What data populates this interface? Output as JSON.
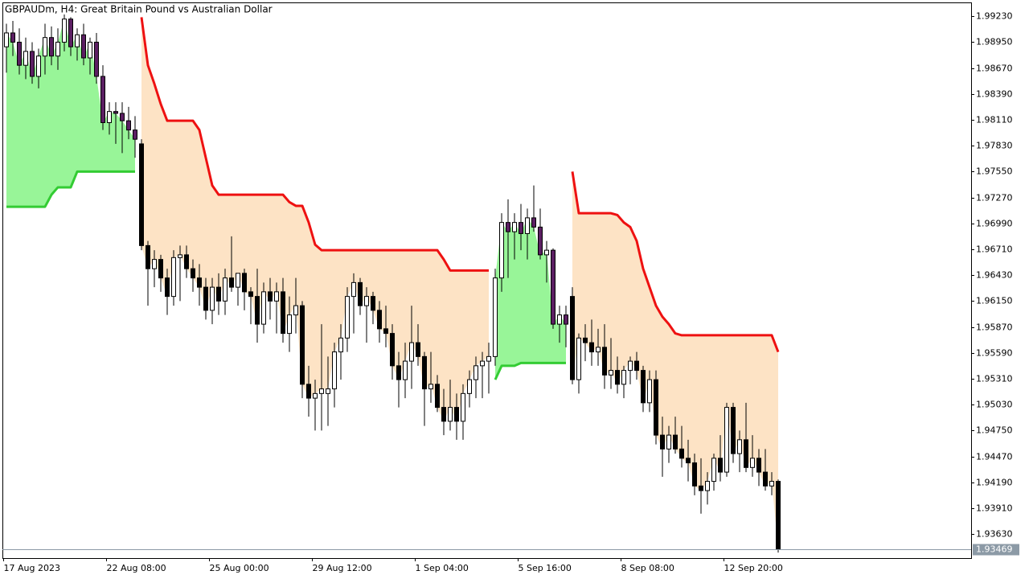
{
  "chart_data": {
    "type": "candlestick",
    "title": "GBPAUDm, H4:  Great Britain Pound vs Australian Dollar",
    "open": [
      1.989,
      1.9905,
      1.9895,
      1.987,
      1.9885,
      1.9858,
      1.988,
      1.99,
      1.988,
      1.9895,
      1.992,
      1.989,
      1.9903,
      1.9878,
      1.9895,
      1.9858,
      1.9808,
      1.982,
      1.9818,
      1.981,
      1.98,
      1.9785,
      1.9675,
      1.965,
      1.966,
      1.964,
      1.962,
      1.9662,
      1.9665,
      1.965,
      1.964,
      1.963,
      1.9605,
      1.963,
      1.9615,
      1.964,
      1.963,
      1.9645,
      1.9625,
      1.962,
      1.959,
      1.9625,
      1.9615,
      1.9625,
      1.958,
      1.96,
      1.961,
      1.9525,
      1.951,
      1.9515,
      1.9515,
      1.952,
      1.956,
      1.9575,
      1.962,
      1.9635,
      1.961,
      1.962,
      1.9605,
      1.9585,
      1.958,
      1.9545,
      1.953,
      1.955,
      1.957,
      1.9555,
      1.952,
      1.9525,
      1.95,
      1.9485,
      1.95,
      1.9485,
      1.9515,
      1.953,
      1.9545,
      1.955,
      1.9555,
      1.964,
      1.97,
      1.969,
      1.97,
      1.9688,
      1.9705,
      1.9695,
      1.9665,
      1.967,
      1.959,
      1.96,
      1.962,
      1.953,
      1.9575,
      1.957,
      1.956,
      1.9565,
      1.9535,
      1.954,
      1.9525,
      1.954,
      1.955,
      1.954,
      1.9505,
      1.953,
      1.947,
      1.9455,
      1.947,
      1.9455,
      1.9445,
      1.944,
      1.9415,
      1.941,
      1.942,
      1.9445,
      1.943,
      1.95,
      1.945,
      1.9465,
      1.9435,
      1.9445,
      1.943,
      1.9415,
      1.942
    ],
    "high": [
      1.9915,
      1.9918,
      1.991,
      1.99,
      1.9895,
      1.9888,
      1.9915,
      1.9912,
      1.991,
      1.9925,
      1.9922,
      1.991,
      1.9915,
      1.99,
      1.9905,
      1.987,
      1.983,
      1.983,
      1.983,
      1.9825,
      1.9815,
      1.979,
      1.968,
      1.967,
      1.9665,
      1.965,
      1.967,
      1.9675,
      1.9675,
      1.966,
      1.9655,
      1.964,
      1.964,
      1.9645,
      1.965,
      1.9685,
      1.9645,
      1.965,
      1.963,
      1.965,
      1.9635,
      1.964,
      1.9635,
      1.964,
      1.962,
      1.964,
      1.9615,
      1.9545,
      1.953,
      1.959,
      1.9555,
      1.957,
      1.959,
      1.963,
      1.9645,
      1.964,
      1.963,
      1.9625,
      1.9615,
      1.961,
      1.959,
      1.956,
      1.957,
      1.961,
      1.959,
      1.956,
      1.956,
      1.9535,
      1.952,
      1.953,
      1.9515,
      1.9525,
      1.954,
      1.9555,
      1.956,
      1.957,
      1.965,
      1.971,
      1.9725,
      1.971,
      1.972,
      1.9715,
      1.974,
      1.9715,
      1.968,
      1.9672,
      1.961,
      1.961,
      1.963,
      1.958,
      1.959,
      1.9595,
      1.9585,
      1.959,
      1.9575,
      1.9555,
      1.9545,
      1.9555,
      1.956,
      1.9545,
      1.954,
      1.954,
      1.949,
      1.948,
      1.949,
      1.948,
      1.9465,
      1.945,
      1.9445,
      1.943,
      1.945,
      1.947,
      1.9505,
      1.9505,
      1.9475,
      1.9505,
      1.947,
      1.9455,
      1.9455,
      1.943,
      1.9422
    ],
    "low": [
      1.9862,
      1.988,
      1.986,
      1.9855,
      1.985,
      1.9845,
      1.986,
      1.987,
      1.9865,
      1.9885,
      1.988,
      1.9875,
      1.987,
      1.986,
      1.985,
      1.98,
      1.9795,
      1.9785,
      1.9775,
      1.979,
      1.977,
      1.967,
      1.961,
      1.963,
      1.9625,
      1.96,
      1.961,
      1.9615,
      1.964,
      1.9625,
      1.961,
      1.9595,
      1.959,
      1.96,
      1.96,
      1.9625,
      1.961,
      1.9605,
      1.959,
      1.957,
      1.958,
      1.9595,
      1.958,
      1.957,
      1.956,
      1.958,
      1.951,
      1.949,
      1.9475,
      1.9475,
      1.948,
      1.95,
      1.953,
      1.956,
      1.958,
      1.96,
      1.957,
      1.959,
      1.957,
      1.9565,
      1.953,
      1.95,
      1.951,
      1.952,
      1.9545,
      1.948,
      1.9505,
      1.9495,
      1.947,
      1.9475,
      1.9465,
      1.9465,
      1.95,
      1.951,
      1.951,
      1.9515,
      1.9545,
      1.9625,
      1.964,
      1.966,
      1.967,
      1.966,
      1.969,
      1.966,
      1.9635,
      1.9585,
      1.957,
      1.9565,
      1.9525,
      1.9515,
      1.955,
      1.9545,
      1.9545,
      1.952,
      1.952,
      1.9515,
      1.951,
      1.9525,
      1.953,
      1.9495,
      1.9495,
      1.946,
      1.9425,
      1.944,
      1.945,
      1.9435,
      1.942,
      1.9405,
      1.9385,
      1.9395,
      1.941,
      1.942,
      1.9425,
      1.944,
      1.943,
      1.943,
      1.9425,
      1.9415,
      1.941,
      1.9405,
      1.9343
    ],
    "close": [
      1.9905,
      1.9895,
      1.987,
      1.9885,
      1.9858,
      1.988,
      1.99,
      1.988,
      1.9895,
      1.992,
      1.989,
      1.9903,
      1.9878,
      1.9895,
      1.9858,
      1.9808,
      1.982,
      1.9818,
      1.981,
      1.98,
      1.979,
      1.9675,
      1.965,
      1.966,
      1.964,
      1.962,
      1.9662,
      1.9665,
      1.965,
      1.964,
      1.963,
      1.9605,
      1.963,
      1.9615,
      1.964,
      1.963,
      1.9645,
      1.9625,
      1.962,
      1.959,
      1.9625,
      1.9615,
      1.9625,
      1.958,
      1.96,
      1.961,
      1.9525,
      1.951,
      1.9515,
      1.952,
      1.952,
      1.956,
      1.9575,
      1.962,
      1.9635,
      1.961,
      1.962,
      1.9605,
      1.9585,
      1.958,
      1.9545,
      1.953,
      1.955,
      1.957,
      1.9555,
      1.952,
      1.9525,
      1.95,
      1.9485,
      1.95,
      1.9485,
      1.9515,
      1.953,
      1.9545,
      1.955,
      1.9555,
      1.964,
      1.97,
      1.969,
      1.97,
      1.9688,
      1.9705,
      1.9695,
      1.9665,
      1.967,
      1.959,
      1.96,
      1.959,
      1.953,
      1.9575,
      1.957,
      1.956,
      1.9565,
      1.9535,
      1.954,
      1.9525,
      1.954,
      1.955,
      1.954,
      1.9505,
      1.953,
      1.947,
      1.9455,
      1.947,
      1.9455,
      1.9445,
      1.944,
      1.9415,
      1.941,
      1.942,
      1.9445,
      1.943,
      1.95,
      1.945,
      1.9465,
      1.9435,
      1.9445,
      1.943,
      1.9415,
      1.942,
      1.93469
    ],
    "supertrend_up": [
      1.9717,
      1.9717,
      1.9717,
      1.9717,
      1.9717,
      1.9717,
      1.9717,
      1.973,
      1.9738,
      1.9738,
      1.9738,
      1.9755,
      1.9755,
      1.9755,
      1.9755,
      1.9755,
      1.9755,
      1.9755,
      1.9755,
      1.9755,
      1.9755,
      null,
      null,
      null,
      null,
      null,
      null,
      null,
      null,
      null,
      null,
      null,
      null,
      null,
      null,
      null,
      null,
      null,
      null,
      null,
      null,
      null,
      null,
      null,
      null,
      null,
      null,
      null,
      null,
      null,
      null,
      null,
      null,
      null,
      null,
      null,
      null,
      null,
      null,
      null,
      null,
      null,
      null,
      null,
      null,
      null,
      null,
      null,
      null,
      null,
      null,
      null,
      null,
      null,
      null,
      null,
      1.953,
      1.9545,
      1.9545,
      1.9545,
      1.9548,
      1.9548,
      1.9548,
      1.9548,
      1.9548,
      1.9548,
      1.9548,
      1.9548,
      null,
      null,
      null,
      null,
      null,
      null,
      null,
      null,
      null,
      null,
      null,
      null,
      null,
      null,
      null,
      null,
      null,
      null,
      null,
      null,
      null,
      null,
      null,
      null,
      null,
      null,
      null,
      null,
      null,
      null,
      null,
      null,
      null
    ],
    "supertrend_down": [
      null,
      null,
      null,
      null,
      null,
      null,
      null,
      null,
      null,
      null,
      null,
      null,
      null,
      null,
      null,
      null,
      null,
      null,
      null,
      null,
      null,
      1.9922,
      1.987,
      1.985,
      1.9828,
      1.981,
      1.981,
      1.981,
      1.981,
      1.981,
      1.98,
      1.977,
      1.974,
      1.973,
      1.973,
      1.973,
      1.973,
      1.973,
      1.973,
      1.973,
      1.973,
      1.973,
      1.973,
      1.973,
      1.9722,
      1.9718,
      1.9718,
      1.97,
      1.9676,
      1.967,
      1.967,
      1.967,
      1.967,
      1.967,
      1.967,
      1.967,
      1.967,
      1.967,
      1.967,
      1.967,
      1.967,
      1.967,
      1.967,
      1.967,
      1.967,
      1.967,
      1.967,
      1.967,
      1.966,
      1.9648,
      1.9648,
      1.9648,
      1.9648,
      1.9648,
      1.9648,
      1.9648,
      null,
      null,
      null,
      null,
      null,
      null,
      null,
      null,
      null,
      null,
      null,
      null,
      1.9755,
      1.971,
      1.971,
      1.971,
      1.971,
      1.971,
      1.971,
      1.9708,
      1.97,
      1.9695,
      1.968,
      1.965,
      1.963,
      1.961,
      1.9598,
      1.959,
      1.958,
      1.9578,
      1.9578,
      1.9578,
      1.9578,
      1.9578,
      1.9578,
      1.9578,
      1.9578,
      1.9578,
      1.9578,
      1.9578,
      1.9578,
      1.9578,
      1.9578,
      1.9578,
      1.956
    ],
    "up_color": "#33cc33",
    "down_color": "#ee1111",
    "up_fill": "#98f598",
    "down_fill": "#fde3c5",
    "bull_color": "#ffffff",
    "bear_color": "#000000",
    "bear_color_in_uptrend": "#5c1f63",
    "ylim": [
      1.9337,
      1.9938
    ],
    "yticks": [
      {
        "value": 1.9923,
        "label": "1.99230"
      },
      {
        "value": 1.9895,
        "label": "1.98950"
      },
      {
        "value": 1.9867,
        "label": "1.98670"
      },
      {
        "value": 1.9839,
        "label": "1.98390"
      },
      {
        "value": 1.9811,
        "label": "1.98110"
      },
      {
        "value": 1.9783,
        "label": "1.97830"
      },
      {
        "value": 1.9755,
        "label": "1.97550"
      },
      {
        "value": 1.9727,
        "label": "1.97270"
      },
      {
        "value": 1.9699,
        "label": "1.96990"
      },
      {
        "value": 1.9671,
        "label": "1.96710"
      },
      {
        "value": 1.9643,
        "label": "1.96430"
      },
      {
        "value": 1.9615,
        "label": "1.96150"
      },
      {
        "value": 1.9587,
        "label": "1.95870"
      },
      {
        "value": 1.9559,
        "label": "1.95590"
      },
      {
        "value": 1.9531,
        "label": "1.95310"
      },
      {
        "value": 1.9503,
        "label": "1.95030"
      },
      {
        "value": 1.9475,
        "label": "1.94750"
      },
      {
        "value": 1.9447,
        "label": "1.94470"
      },
      {
        "value": 1.9419,
        "label": "1.94190"
      },
      {
        "value": 1.9391,
        "label": "1.93910"
      },
      {
        "value": 1.9363,
        "label": "1.93630"
      }
    ],
    "xticks": [
      {
        "value": 0,
        "label": "17 Aug 2023"
      },
      {
        "value": 16,
        "label": "22 Aug 08:00"
      },
      {
        "value": 32,
        "label": "25 Aug 00:00"
      },
      {
        "value": 48,
        "label": "29 Aug 12:00"
      },
      {
        "value": 64,
        "label": "1 Sep 04:00"
      },
      {
        "value": 80,
        "label": "5 Sep 16:00"
      },
      {
        "value": 96,
        "label": "8 Sep 08:00"
      },
      {
        "value": 112,
        "label": "12 Sep 20:00"
      }
    ]
  }
}
